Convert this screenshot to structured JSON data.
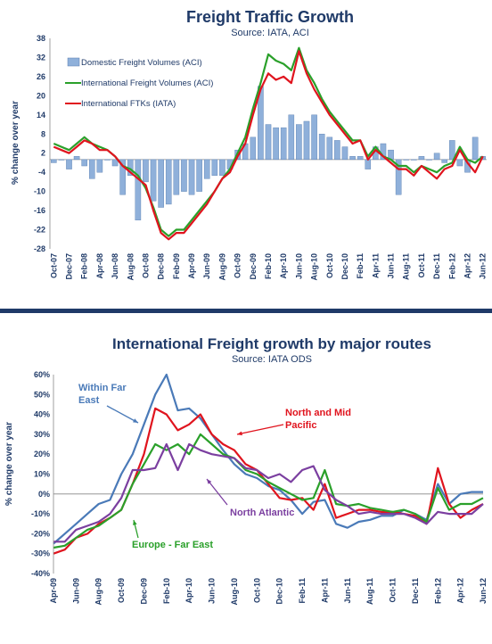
{
  "chart_data": [
    {
      "type": "bar+line",
      "title": "Freight Traffic Growth",
      "subtitle": "Source: IATA, ACI",
      "ylabel": "% change over year",
      "ylim": [
        -28,
        38
      ],
      "yticks": [
        38,
        32,
        26,
        20,
        14,
        8,
        2,
        -4,
        -10,
        -16,
        -22,
        -28
      ],
      "xticks": [
        "Oct-07",
        "Dec-07",
        "Feb-08",
        "Apr-08",
        "Jun-08",
        "Aug-08",
        "Oct-08",
        "Dec-08",
        "Feb-09",
        "Apr-09",
        "Jun-09",
        "Aug-09",
        "Oct-09",
        "Dec-09",
        "Feb-10",
        "Apr-10",
        "Jun-10",
        "Aug-10",
        "Oct-10",
        "Dec-10",
        "Feb-11",
        "Apr-11",
        "Jun-11",
        "Aug-11",
        "Oct-11",
        "Dec-11",
        "Feb-12",
        "Apr-12",
        "Jun-12"
      ],
      "x": [
        "Oct-07",
        "Nov-07",
        "Dec-07",
        "Jan-08",
        "Feb-08",
        "Mar-08",
        "Apr-08",
        "May-08",
        "Jun-08",
        "Jul-08",
        "Aug-08",
        "Sep-08",
        "Oct-08",
        "Nov-08",
        "Dec-08",
        "Jan-09",
        "Feb-09",
        "Mar-09",
        "Apr-09",
        "May-09",
        "Jun-09",
        "Jul-09",
        "Aug-09",
        "Sep-09",
        "Oct-09",
        "Nov-09",
        "Dec-09",
        "Jan-10",
        "Feb-10",
        "Mar-10",
        "Apr-10",
        "May-10",
        "Jun-10",
        "Jul-10",
        "Aug-10",
        "Sep-10",
        "Oct-10",
        "Nov-10",
        "Dec-10",
        "Jan-11",
        "Feb-11",
        "Mar-11",
        "Apr-11",
        "May-11",
        "Jun-11",
        "Jul-11",
        "Aug-11",
        "Sep-11",
        "Oct-11",
        "Nov-11",
        "Dec-11",
        "Jan-12",
        "Feb-12",
        "Mar-12",
        "Apr-12",
        "May-12",
        "Jun-12"
      ],
      "series": [
        {
          "name": "Domestic Freight Volumes (ACI)",
          "kind": "bar",
          "color": "#8fb0da",
          "values": [
            -1,
            0,
            -3,
            1,
            -2,
            -6,
            -4,
            0,
            -2,
            -11,
            -5,
            -19,
            -7,
            -13,
            -15,
            -14,
            -11,
            -10,
            -11,
            -10,
            -6,
            -5,
            -5,
            -3,
            3,
            5,
            7,
            23,
            11,
            10,
            10,
            14,
            11,
            12,
            14,
            8,
            7,
            6,
            4,
            1,
            1,
            -3,
            4,
            5,
            3,
            -11,
            0,
            0,
            1,
            0,
            2,
            -1,
            6,
            -2,
            -4,
            7,
            1
          ]
        },
        {
          "name": "International Freight Volumes (ACI)",
          "kind": "line",
          "color": "#2aa02a",
          "values": [
            5,
            4,
            3,
            5,
            7,
            5,
            4,
            3,
            1,
            -2,
            -3,
            -5,
            -9,
            -15,
            -22,
            -24,
            -22,
            -22,
            -19,
            -16,
            -13,
            -10,
            -6,
            -3,
            2,
            7,
            16,
            24,
            33,
            31,
            30,
            28,
            35,
            28,
            24,
            19,
            15,
            12,
            9,
            6,
            6,
            1,
            4,
            1,
            0,
            -2,
            -2,
            -4,
            -2,
            -3,
            -4,
            -2,
            -1,
            4,
            0,
            -1,
            1
          ]
        },
        {
          "name": "International FTKs (IATA)",
          "kind": "line",
          "color": "#e0141e",
          "values": [
            4,
            3,
            2,
            4,
            6,
            5,
            3,
            3,
            1,
            -2,
            -4,
            -6,
            -8,
            -16,
            -23,
            -25,
            -23,
            -23,
            -20,
            -17,
            -14,
            -10,
            -6,
            -4,
            1,
            5,
            14,
            22,
            27,
            25,
            26,
            24,
            34,
            27,
            22,
            18,
            14,
            11,
            8,
            5,
            6,
            0,
            3,
            1,
            -1,
            -3,
            -3,
            -5,
            -2,
            -4,
            -6,
            -3,
            -2,
            3,
            -1,
            -4,
            1
          ]
        }
      ],
      "legend_position": "top-left"
    },
    {
      "type": "line",
      "title": "International Freight growth by major routes",
      "subtitle": "Source: IATA ODS",
      "ylabel": "% change over year",
      "ylim": [
        -40,
        60
      ],
      "yticks": [
        "60%",
        "50%",
        "40%",
        "30%",
        "20%",
        "10%",
        "0%",
        "-10%",
        "-20%",
        "-30%",
        "-40%"
      ],
      "xticks": [
        "Apr-09",
        "Jun-09",
        "Aug-09",
        "Oct-09",
        "Dec-09",
        "Feb-10",
        "Apr-10",
        "Jun-10",
        "Aug-10",
        "Oct-10",
        "Dec-10",
        "Feb-11",
        "Apr-11",
        "Jun-11",
        "Aug-11",
        "Oct-11",
        "Dec-11",
        "Feb-12",
        "Apr-12",
        "Jun-12"
      ],
      "x": [
        "Apr-09",
        "May-09",
        "Jun-09",
        "Jul-09",
        "Aug-09",
        "Sep-09",
        "Oct-09",
        "Nov-09",
        "Dec-09",
        "Jan-10",
        "Feb-10",
        "Mar-10",
        "Apr-10",
        "May-10",
        "Jun-10",
        "Jul-10",
        "Aug-10",
        "Sep-10",
        "Oct-10",
        "Nov-10",
        "Dec-10",
        "Jan-11",
        "Feb-11",
        "Mar-11",
        "Apr-11",
        "May-11",
        "Jun-11",
        "Jul-11",
        "Aug-11",
        "Sep-11",
        "Oct-11",
        "Nov-11",
        "Dec-11",
        "Jan-12",
        "Feb-12",
        "Mar-12",
        "Apr-12",
        "May-12",
        "Jun-12"
      ],
      "series": [
        {
          "name": "Within Far East",
          "color": "#4a7ab8",
          "values": [
            -25,
            -20,
            -15,
            -10,
            -5,
            -3,
            10,
            20,
            35,
            50,
            60,
            42,
            43,
            38,
            30,
            22,
            15,
            10,
            8,
            4,
            2,
            -3,
            -10,
            -4,
            -3,
            -15,
            -17,
            -14,
            -13,
            -11,
            -11,
            -8,
            -10,
            -13,
            5,
            -5,
            0,
            1,
            1
          ]
        },
        {
          "name": "North and Mid Pacific",
          "color": "#e0141e",
          "values": [
            -30,
            -28,
            -22,
            -20,
            -15,
            -12,
            -8,
            5,
            20,
            43,
            40,
            32,
            35,
            40,
            30,
            25,
            22,
            15,
            12,
            5,
            -2,
            -3,
            -2,
            -8,
            5,
            -12,
            -10,
            -8,
            -8,
            -9,
            -9,
            -10,
            -11,
            -15,
            13,
            -5,
            -12,
            -8,
            -5
          ]
        },
        {
          "name": "Europe - Far East",
          "color": "#2aa02a",
          "values": [
            -27,
            -26,
            -22,
            -18,
            -16,
            -12,
            -8,
            5,
            15,
            25,
            22,
            25,
            20,
            30,
            25,
            20,
            18,
            12,
            10,
            6,
            3,
            0,
            -3,
            -2,
            12,
            -5,
            -6,
            -5,
            -7,
            -8,
            -9,
            -8,
            -10,
            -14,
            3,
            -8,
            -5,
            -5,
            -2
          ]
        },
        {
          "name": "North Atlantic",
          "color": "#7b3fa0",
          "values": [
            -24,
            -24,
            -18,
            -16,
            -14,
            -10,
            -2,
            12,
            12,
            13,
            25,
            12,
            25,
            22,
            20,
            19,
            18,
            13,
            12,
            8,
            10,
            6,
            12,
            14,
            2,
            -3,
            -6,
            -10,
            -9,
            -10,
            -10,
            -10,
            -12,
            -15,
            -9,
            -10,
            -10,
            -10,
            -5
          ]
        }
      ],
      "annotations": [
        {
          "text": [
            "Within Far",
            "East"
          ],
          "color": "#4a7ab8",
          "points_to": "Within Far East"
        },
        {
          "text": [
            "North and Mid",
            "Pacific"
          ],
          "color": "#e0141e",
          "points_to": "North and Mid Pacific"
        },
        {
          "text": [
            "North Atlantic"
          ],
          "color": "#7b3fa0",
          "points_to": "North Atlantic"
        },
        {
          "text": [
            "Europe - Far East"
          ],
          "color": "#2aa02a",
          "points_to": "Europe - Far East"
        }
      ]
    }
  ],
  "colors": {
    "text": "#1f3a68",
    "divider": "#1f3a68"
  }
}
